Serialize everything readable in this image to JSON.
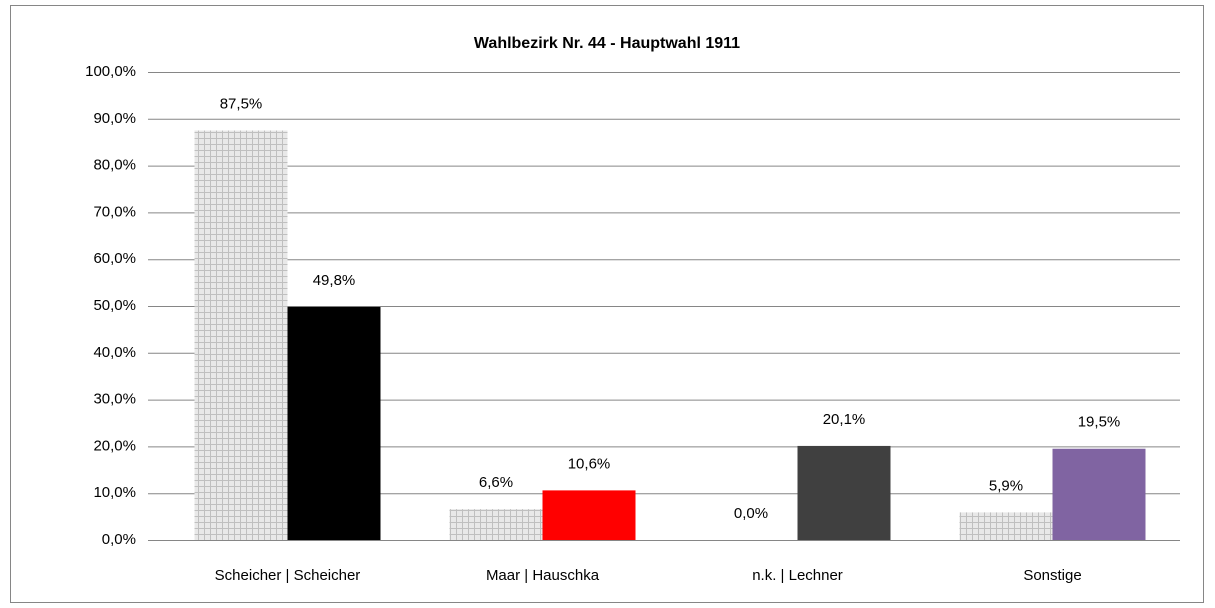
{
  "chart_data": {
    "type": "bar",
    "title": "Wahlbezirk Nr. 44 - Hauptwahl 1911",
    "categories": [
      "Scheicher | Scheicher",
      "Maar | Hauschka",
      "n.k. | Lechner",
      "Sonstige"
    ],
    "series": [
      {
        "color": "#d9d9d9",
        "pattern": "grid",
        "values": [
          87.5,
          6.6,
          0,
          5.9
        ],
        "value_labels": [
          "87,5%",
          "6,6%",
          "0,0%",
          "5,9%"
        ]
      },
      {
        "colors": [
          "#000000",
          "#ff0000",
          "#404040",
          "#8064a2"
        ],
        "values": [
          49.8,
          10.6,
          20.1,
          19.5
        ],
        "value_labels": [
          "49,8%",
          "10,6%",
          "20,1%",
          "19,5%"
        ]
      }
    ],
    "ylim": [
      0,
      100
    ],
    "yticks": [
      {
        "value": 0,
        "label": "0,0%"
      },
      {
        "value": 10,
        "label": "10,0%"
      },
      {
        "value": 20,
        "label": "20,0%"
      },
      {
        "value": 30,
        "label": "30,0%"
      },
      {
        "value": 40,
        "label": "40,0%"
      },
      {
        "value": 50,
        "label": "50,0%"
      },
      {
        "value": 60,
        "label": "60,0%"
      },
      {
        "value": 70,
        "label": "70,0%"
      },
      {
        "value": 80,
        "label": "80,0%"
      },
      {
        "value": 90,
        "label": "90,0%"
      },
      {
        "value": 100,
        "label": "100,0%"
      }
    ],
    "grid": true
  }
}
